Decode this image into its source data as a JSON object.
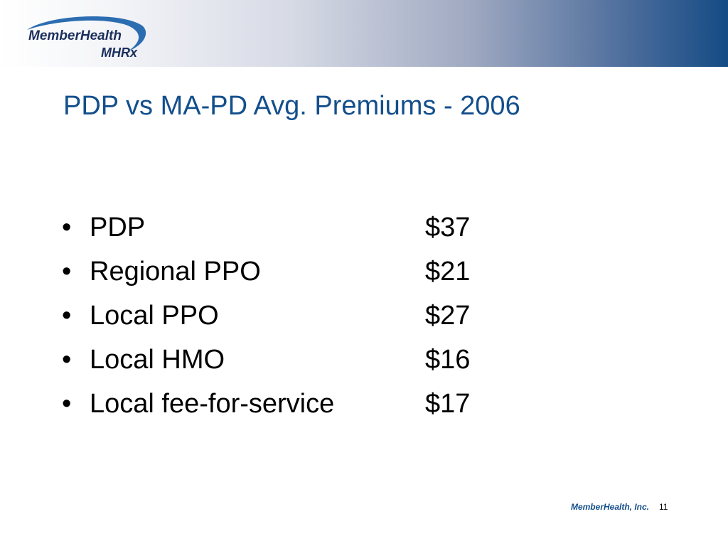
{
  "header": {
    "logo": {
      "icon": "memberhealth-logo",
      "brand_text": "MemberHealth",
      "brand_mark": "MHRx"
    }
  },
  "slide": {
    "title": "PDP vs MA-PD Avg. Premiums - 2006",
    "bullet_glyph": "•",
    "items": [
      {
        "label": "PDP",
        "value": "$37"
      },
      {
        "label": "Regional PPO",
        "value": "$21"
      },
      {
        "label": "Local PPO",
        "value": "$27"
      },
      {
        "label": "Local HMO",
        "value": "$16"
      },
      {
        "label": "Local fee-for-service",
        "value": "$17"
      }
    ]
  },
  "footer": {
    "company": "MemberHealth, Inc.",
    "page_number": "11"
  },
  "colors": {
    "title": "#134f8c",
    "header_gradient_end": "#144b84",
    "logo_navy": "#1b2f5c",
    "logo_swoosh": "#2c6db2"
  }
}
